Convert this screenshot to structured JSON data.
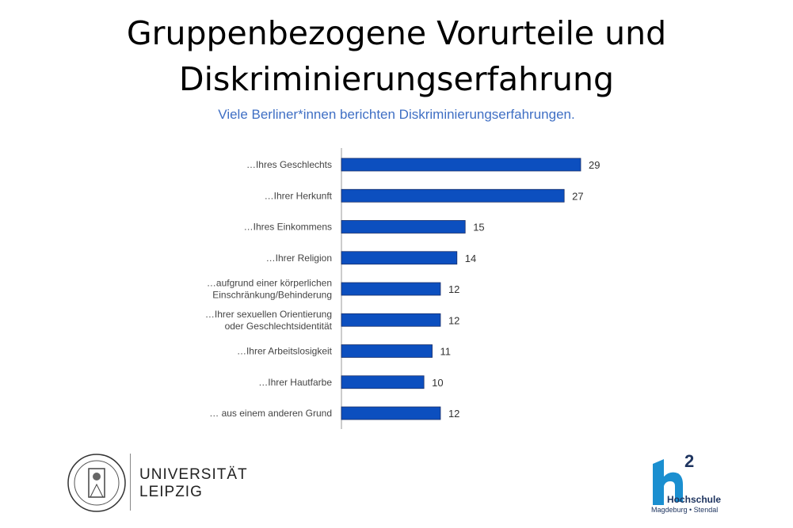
{
  "slide": {
    "title_line1": "Gruppenbezogene Vorurteile und",
    "title_line2": "Diskriminierungserfahrung",
    "subtitle": "Viele Berliner*innen berichten Diskriminierungserfahrungen."
  },
  "chart_data": {
    "type": "bar",
    "orientation": "horizontal",
    "categories": [
      [
        "…Ihres Geschlechts"
      ],
      [
        "…Ihrer Herkunft"
      ],
      [
        "…Ihres Einkommens"
      ],
      [
        "…Ihrer Religion"
      ],
      [
        "…aufgrund einer körperlichen",
        "Einschränkung/Behinderung"
      ],
      [
        "…Ihrer sexuellen Orientierung",
        "oder Geschlechtsidentität"
      ],
      [
        "…Ihrer Arbeitslosigkeit"
      ],
      [
        "…Ihrer Hautfarbe"
      ],
      [
        "… aus einem anderen Grund"
      ]
    ],
    "values": [
      29,
      27,
      15,
      14,
      12,
      12,
      11,
      10,
      12
    ],
    "data_labels": true,
    "bar_color": "#0c4fbf",
    "grid": false
  },
  "logos": {
    "left": {
      "line1": "UNIVERSITÄT",
      "line2": "LEIPZIG"
    },
    "right": {
      "mark": "h²",
      "name": "Hochschule",
      "places": "Magdeburg • Stendal",
      "color": "#1b8fd0"
    }
  }
}
